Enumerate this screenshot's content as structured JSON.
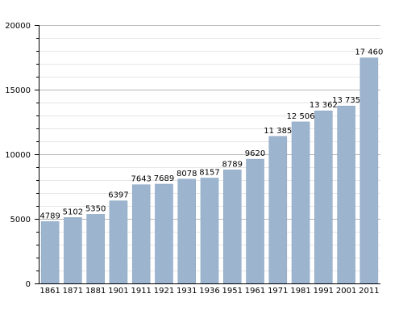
{
  "chart_data": {
    "type": "bar",
    "categories": [
      "1861",
      "1871",
      "1881",
      "1901",
      "1911",
      "1921",
      "1931",
      "1936",
      "1951",
      "1961",
      "1971",
      "1981",
      "1991",
      "2001",
      "2011"
    ],
    "values": [
      4789,
      5102,
      5350,
      6397,
      7643,
      7689,
      8078,
      8157,
      8789,
      9620,
      11385,
      12506,
      13362,
      13735,
      17460
    ],
    "value_labels": [
      "4789",
      "5102",
      "5350",
      "6397",
      "7643",
      "7689",
      "8078",
      "8157",
      "8789",
      "9620",
      "11 385",
      "12 506",
      "13 362",
      "13 735",
      "17 460"
    ],
    "y_ticks": [
      0,
      5000,
      10000,
      15000,
      20000
    ],
    "y_tick_labels": [
      "0",
      "5000",
      "10000",
      "15000",
      "20000"
    ],
    "ylim": [
      0,
      20000
    ],
    "minor_gridlines_step": 1000,
    "grid": true,
    "colors": {
      "bar": "#9db4cf",
      "bar_edge": "#8aa3c0",
      "major_grid": "#b8b8b8",
      "minor_grid": "#e6e6e6",
      "axis": "#000000"
    }
  }
}
